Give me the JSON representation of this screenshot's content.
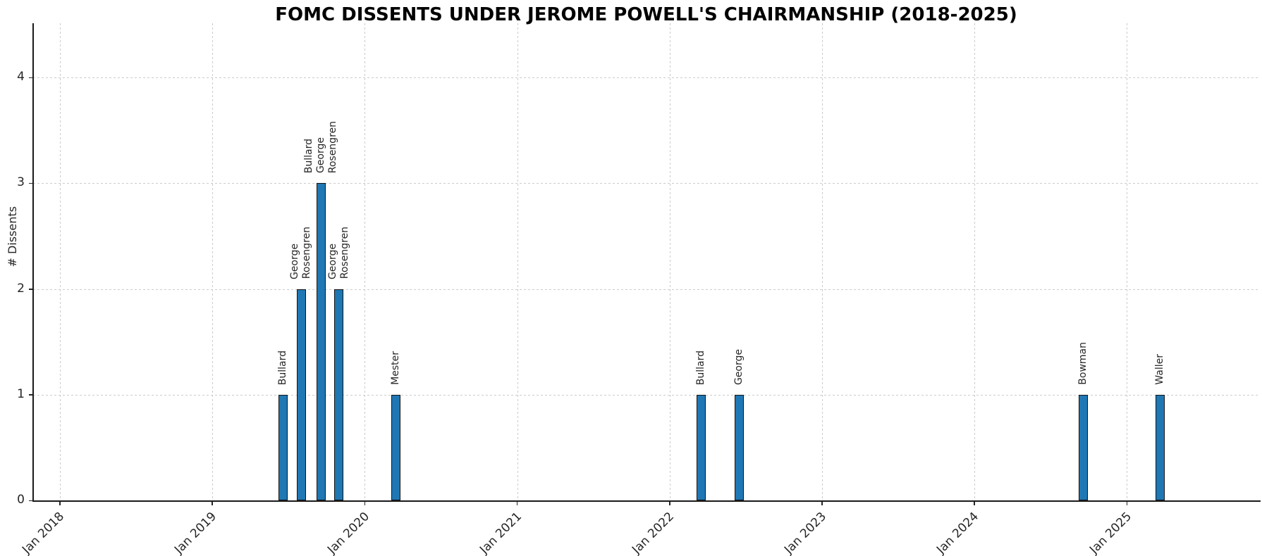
{
  "title": "FOMC DISSENTS UNDER JEROME POWELL'S CHAIRMANSHIP (2018-2025)",
  "chart_data": {
    "type": "bar",
    "title": "FOMC DISSENTS UNDER JEROME POWELL'S CHAIRMANSHIP (2018-2025)",
    "xlabel": "",
    "ylabel": "# Dissents",
    "x_axis": {
      "kind": "time",
      "tick_labels": [
        "Jan 2018",
        "Jan 2019",
        "Jan 2020",
        "Jan 2021",
        "Jan 2022",
        "Jan 2023",
        "Jan 2024",
        "Jan 2025"
      ],
      "range": [
        "2017-11-01",
        "2025-11-01"
      ],
      "grid": true
    },
    "y_axis": {
      "tick_labels": [
        "0",
        "1",
        "2",
        "3",
        "4"
      ],
      "ticks": [
        0,
        1,
        2,
        3,
        4
      ],
      "ylim": [
        0,
        4.53
      ],
      "grid": true
    },
    "bars": [
      {
        "date": "2019-06-19",
        "value": 1,
        "dissenters": [
          "Bullard"
        ]
      },
      {
        "date": "2019-07-31",
        "value": 2,
        "dissenters": [
          "George",
          "Rosengren"
        ]
      },
      {
        "date": "2019-09-18",
        "value": 3,
        "dissenters": [
          "Bullard",
          "George",
          "Rosengren"
        ]
      },
      {
        "date": "2019-10-30",
        "value": 2,
        "dissenters": [
          "George",
          "Rosengren"
        ]
      },
      {
        "date": "2020-03-15",
        "value": 1,
        "dissenters": [
          "Mester"
        ]
      },
      {
        "date": "2022-03-16",
        "value": 1,
        "dissenters": [
          "Bullard"
        ]
      },
      {
        "date": "2022-06-15",
        "value": 1,
        "dissenters": [
          "George"
        ]
      },
      {
        "date": "2024-09-18",
        "value": 1,
        "dissenters": [
          "Bowman"
        ]
      },
      {
        "date": "2025-03-19",
        "value": 1,
        "dissenters": [
          "Waller"
        ]
      }
    ],
    "colors": {
      "bar_fill": "#1f77b4",
      "bar_edge": "#141414",
      "grid": "#cbcbcb",
      "spine": "#1a1a1a",
      "text": "#262626"
    },
    "legend": null
  }
}
